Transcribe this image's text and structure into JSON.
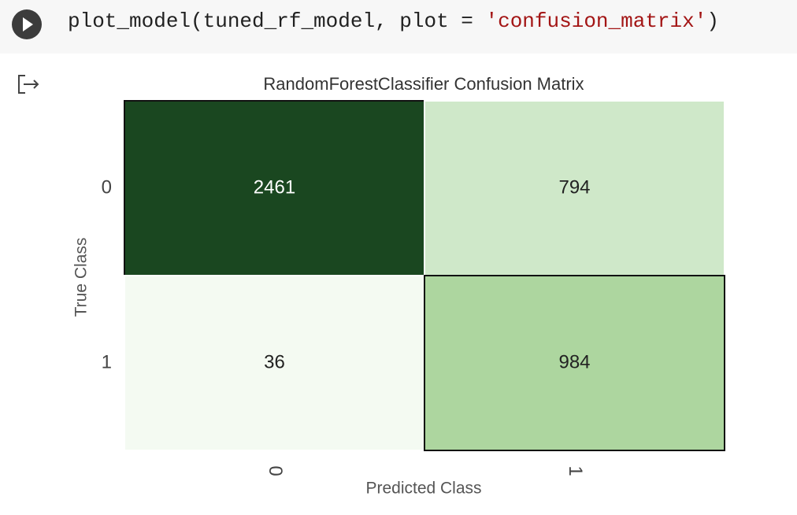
{
  "code": {
    "parts": [
      "plot_model(tuned_rf_model, plot = ",
      "'confusion_matrix'",
      ")"
    ]
  },
  "chart_data": {
    "type": "heatmap",
    "title": "RandomForestClassifier Confusion Matrix",
    "x_label": "Predicted Class",
    "y_label": "True Class",
    "x_categories": [
      "0",
      "1"
    ],
    "y_categories": [
      "0",
      "1"
    ],
    "values": [
      [
        2461,
        794
      ],
      [
        36,
        984
      ]
    ],
    "colors": [
      [
        "#1a4720",
        "#cfe8c9"
      ],
      [
        "#f4faf2",
        "#add69f"
      ]
    ]
  }
}
